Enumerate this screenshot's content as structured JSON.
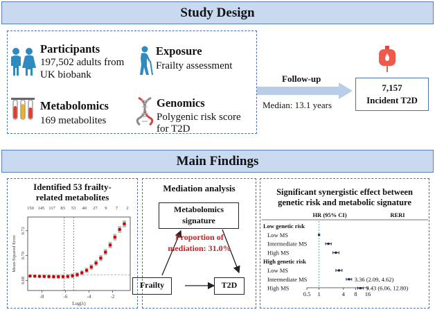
{
  "study_design": {
    "title": "Study Design",
    "participants": {
      "heading": "Participants",
      "line1": "197,502 adults from",
      "line2": "UK biobank"
    },
    "exposure": {
      "heading": "Exposure",
      "line1": "Frailty assessment"
    },
    "metabolomics": {
      "heading": "Metabolomics",
      "line1": "169 metabolites"
    },
    "genomics": {
      "heading": "Genomics",
      "line1": "Polygenic risk score",
      "line2": "for T2D"
    },
    "followup": {
      "label": "Follow-up",
      "median": "Median: 13.1 years"
    },
    "outcome": {
      "count": "7,157",
      "label": "Incident T2D"
    },
    "icons": [
      "people-icon",
      "elderly-with-cane-icon",
      "test-tubes-icon",
      "dna-icon",
      "blood-bag-icon"
    ]
  },
  "main_findings": {
    "title": "Main Findings",
    "panel1": {
      "title_line1": "Identified 53 frailty-",
      "title_line2": "related metabolites",
      "chart_data": {
        "type": "scatter",
        "x_axis_label": "Log(λ)",
        "y_axis_label": "Mean-Squared Error",
        "top_tick_labels": [
          "150",
          "145",
          "117",
          "83",
          "53",
          "40",
          "27",
          "9",
          "7",
          "2"
        ],
        "x_tick_labels": [
          "-8",
          "-6",
          "-4",
          "-2"
        ],
        "y_tick_labels": [
          "0.68",
          "0.70",
          "0.72"
        ],
        "xlim": [
          -9.2,
          -0.5
        ],
        "ylim": [
          0.672,
          0.731
        ],
        "vlines": [
          -6.1,
          -5.3
        ],
        "hline": 0.6847,
        "log_lambda": [
          -9.0,
          -8.6,
          -8.2,
          -7.8,
          -7.4,
          -7.0,
          -6.6,
          -6.2,
          -5.8,
          -5.4,
          -5.0,
          -4.6,
          -4.2,
          -3.8,
          -3.4,
          -3.0,
          -2.6,
          -2.2,
          -1.8,
          -1.4,
          -1.0
        ],
        "mse": [
          0.6836,
          0.6835,
          0.6834,
          0.6833,
          0.6832,
          0.6831,
          0.6831,
          0.6831,
          0.6833,
          0.6838,
          0.6847,
          0.6862,
          0.6882,
          0.6908,
          0.694,
          0.698,
          0.7028,
          0.7085,
          0.7148,
          0.721,
          0.7255
        ],
        "point_color": "#cc0000",
        "band_color": "#bdbdbd"
      }
    },
    "panel2": {
      "title": "Mediation analysis",
      "mediator_line1": "Metabolomics",
      "mediator_line2": "signature",
      "exposure": "Frailty",
      "outcome": "T2D",
      "proportion_line1": "Proportion of",
      "proportion_line2": "mediation: 31.0%",
      "highlight_color": "#c0211e"
    },
    "panel3": {
      "title_line1": "Significant synergistic effect between",
      "title_line2": "genetic risk and metabolic signature",
      "col_hr": "HR (95% CI)",
      "col_reri": "RERI",
      "groups": [
        {
          "label": "Low genetic risk",
          "rows": [
            {
              "label": "Low MS",
              "hr": 1.0,
              "lo": 1.0,
              "hi": 1.0,
              "reri": ""
            },
            {
              "label": "Intermediate MS",
              "hr": 1.7,
              "lo": 1.45,
              "hi": 2.0,
              "reri": ""
            },
            {
              "label": "High MS",
              "hr": 2.6,
              "lo": 2.2,
              "hi": 3.1,
              "reri": ""
            }
          ]
        },
        {
          "label": "High genetic risk",
          "rows": [
            {
              "label": "Low MS",
              "hr": 3.1,
              "lo": 2.6,
              "hi": 3.7,
              "reri": ""
            },
            {
              "label": "Intermediate MS",
              "hr": 5.5,
              "lo": 4.7,
              "hi": 6.4,
              "reri": "3.36 (2.09, 4.62)"
            },
            {
              "label": "High MS",
              "hr": 10.5,
              "lo": 9.0,
              "hi": 12.3,
              "reri": "9.43 (6.06, 12.80)"
            }
          ]
        }
      ],
      "x_ticks": [
        {
          "v": 0.5,
          "label": "0.5"
        },
        {
          "v": 1,
          "label": "1"
        },
        {
          "v": 4,
          "label": "4"
        },
        {
          "v": 8,
          "label": "8"
        },
        {
          "v": 16,
          "label": "16"
        }
      ]
    }
  }
}
